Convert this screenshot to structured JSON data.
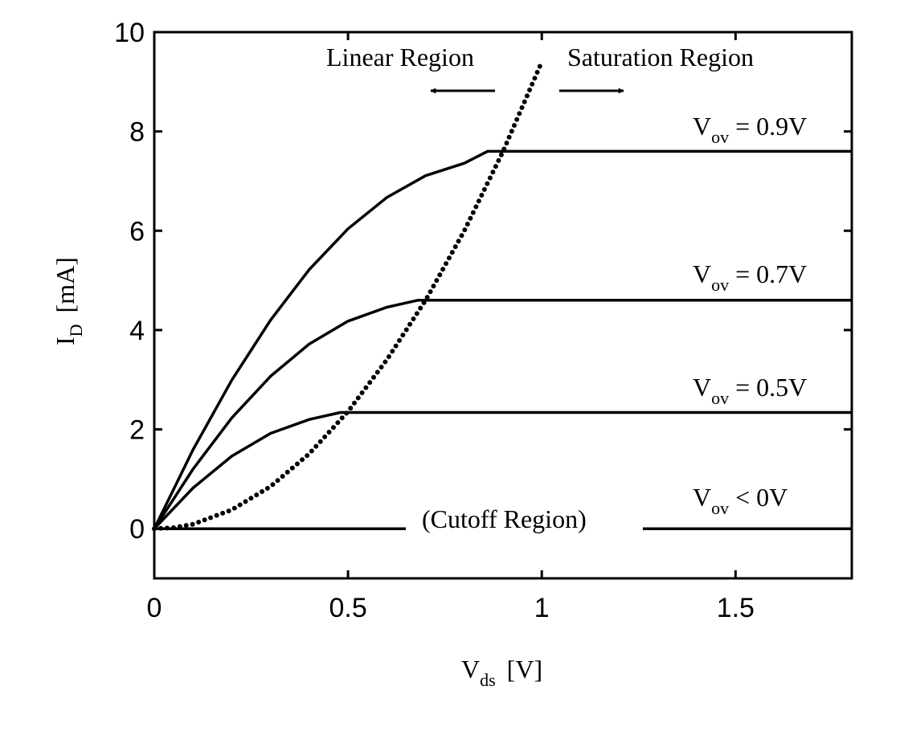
{
  "chart_data": {
    "type": "line",
    "title": "",
    "xlabel": {
      "main": "V",
      "sub": "ds",
      "unit": "[V]"
    },
    "ylabel": {
      "main": "I",
      "sub": "D",
      "unit": "[mA]"
    },
    "xlim": [
      0,
      1.8
    ],
    "ylim": [
      -1,
      10
    ],
    "xticks": [
      0,
      0.5,
      1,
      1.5
    ],
    "xtick_labels": [
      "0",
      "0.5",
      "1",
      "1.5"
    ],
    "yticks": [
      0,
      2,
      4,
      6,
      8,
      10
    ],
    "ytick_labels": [
      "0",
      "2",
      "4",
      "6",
      "8",
      "10"
    ],
    "grid": false,
    "series": [
      {
        "label": {
          "main": "V",
          "sub": "ov",
          "rest": " = 0.9V"
        },
        "line_style": "solid",
        "x": [
          0,
          0.1,
          0.2,
          0.3,
          0.4,
          0.5,
          0.6,
          0.7,
          0.8,
          0.86,
          1.0,
          1.2,
          1.4,
          1.6,
          1.8
        ],
        "y": [
          0,
          1.59,
          2.99,
          4.2,
          5.22,
          6.04,
          6.67,
          7.11,
          7.36,
          7.6,
          7.6,
          7.6,
          7.6,
          7.6,
          7.6
        ]
      },
      {
        "label": {
          "main": "V",
          "sub": "ov",
          "rest": " = 0.7V"
        },
        "line_style": "solid",
        "x": [
          0,
          0.1,
          0.2,
          0.3,
          0.4,
          0.5,
          0.6,
          0.68,
          0.8,
          1.0,
          1.2,
          1.4,
          1.6,
          1.8
        ],
        "y": [
          0,
          1.2,
          2.23,
          3.07,
          3.72,
          4.18,
          4.46,
          4.6,
          4.6,
          4.6,
          4.6,
          4.6,
          4.6,
          4.6
        ]
      },
      {
        "label": {
          "main": "V",
          "sub": "ov",
          "rest": " = 0.5V"
        },
        "line_style": "solid",
        "x": [
          0,
          0.1,
          0.2,
          0.3,
          0.4,
          0.48,
          0.6,
          0.8,
          1.0,
          1.2,
          1.4,
          1.6,
          1.8
        ],
        "y": [
          0,
          0.82,
          1.46,
          1.92,
          2.2,
          2.34,
          2.34,
          2.34,
          2.34,
          2.34,
          2.34,
          2.34,
          2.34
        ]
      },
      {
        "label": {
          "main": "V",
          "sub": "ov",
          "rest": " < 0V"
        },
        "line_style": "solid",
        "x": [
          0,
          1.8
        ],
        "y": [
          0,
          0
        ]
      },
      {
        "label": "",
        "line_style": "dotted",
        "x": [
          0,
          0.05,
          0.1,
          0.2,
          0.3,
          0.4,
          0.5,
          0.6,
          0.7,
          0.8,
          0.9,
          1.0
        ],
        "y": [
          0,
          0.02,
          0.09,
          0.38,
          0.85,
          1.51,
          2.36,
          3.4,
          4.6,
          6.0,
          7.6,
          9.4
        ]
      }
    ],
    "annotations": {
      "linear_region": "Linear Region",
      "saturation_region": "Saturation Region",
      "cutoff_region": "(Cutoff Region)"
    }
  }
}
